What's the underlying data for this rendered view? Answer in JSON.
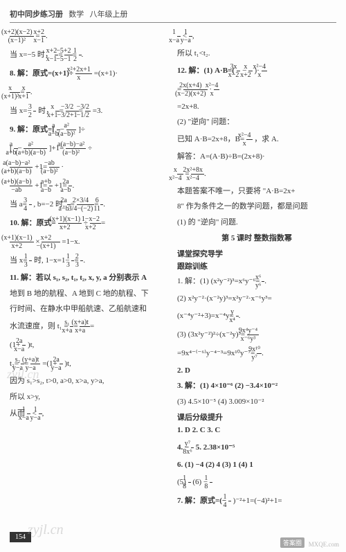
{
  "header": {
    "series": "初中同步练习册",
    "subject": "数学",
    "grade": "八年级上册"
  },
  "pageNumber": "154",
  "watermarks": {
    "w1": "zyjl.cn",
    "w2": "zyjl.cn",
    "w3": "MXQE.com",
    "badge": "答案圈"
  },
  "left": {
    "l1a": "(x+2)(x−2)",
    "l1b": "(x−1)²",
    "l1c": "x+2",
    "l1d": "x−1",
    "l2": "当 x=−5 时，",
    "l2a": "x+2",
    "l2b": "x−1",
    "l2c": "−5+2",
    "l2d": "−5−1",
    "l2e": "1",
    "l2f": "2",
    "q8": "8. 解：原式=(x+1)÷",
    "q8a": "x²+2x+1",
    "q8b": "x",
    "q8c": "=(x+1)·",
    "q8d": "x",
    "q8e": "(x+1)²",
    "q8f": "x",
    "q8g": "x+1",
    "q8h": "当 x=−",
    "q8i": "3",
    "q8j": "2",
    "q8k": " 时，",
    "q8l": "x",
    "q8m": "x+1",
    "q8n": "−3/2",
    "q8o": "−3/2+1",
    "q8p": "−3/2",
    "q8q": "−1/2",
    "q8r": "=3.",
    "q9": "9. 解：原式=[",
    "q9a": "a",
    "q9b": "a−b",
    "q9c": "a²",
    "q9d": "(a−b)²",
    "q9e": "]÷",
    "q9f": "[",
    "q9g": "a",
    "q9h": "a+b",
    "q9i": "a²",
    "q9j": "(a+b)(a−b)",
    "q9k": "]+1=",
    "q9l": "a(a−b)−a²",
    "q9m": "(a−b)²",
    "q9n": "÷",
    "q9o": "a(a−b)−a²",
    "q9p": "(a+b)(a−b)",
    "q9q": "+1=",
    "q9r": "−ab",
    "q9s": "(a−b)²",
    "q9t": "·",
    "q9u": "(a+b)(a−b)",
    "q9v": "−ab",
    "q9w": "+1=",
    "q9x": "a+b",
    "q9y": "a−b",
    "q9z": "+1=",
    "q9aa": "2a",
    "q9ab": "a−b",
    "q9ac": "当 a=",
    "q9ad": "3",
    "q9ae": "4",
    "q9af": ", b=−2 时,",
    "q9ag": "2a",
    "q9ah": "a−b",
    "q9ai": "2×3/4",
    "q9aj": "3/4−(−2)",
    "q9ak": "6",
    "q9al": "11",
    "q10": "10. 解：原式=",
    "q10a": "(x+1)(x−1)",
    "q10b": "x+2",
    "q10c": "÷",
    "q10d": "1−x−2",
    "q10e": "x+2",
    "q10f": "(x+1)(x−1)",
    "q10g": "x+2",
    "q10h": "×",
    "q10i": "x+2",
    "q10j": "−(x+1)",
    "q10k": "=1−x.",
    "q10l": "当 x=",
    "q10m": "1",
    "q10n": "3",
    "q10o": "时, 1−x=1−",
    "q10p": "1",
    "q10q": "3",
    "q10r": "2",
    "q10s": "3",
    "q11": "11. 解：若以 s₁, s₂, t₁, t₂, x, y, a 分别表示 A",
    "q11a": "地到 B 地的航程、A 地到 C 地的航程、下",
    "q11b": "行时间、在静水中甲船航速、乙船航速和",
    "q11c": "水流速度，则 t₁ =",
    "q11d": "s₁",
    "q11e": "x+a",
    "q11f": "(x+a)t",
    "q11g": "x+a",
    "q11h": "(1+",
    "q11i": "2a",
    "q11j": "x−a",
    "q11k": ")t,",
    "q11l": "t₂=",
    "q11m": "s₂",
    "q11n": "y−a",
    "q11o": "(y+a)t",
    "q11p": "y−a",
    "q11q": "=(1+",
    "q11r": "2a",
    "q11s": "y−a",
    "q11t": ")t,",
    "q11u": "因为 s₁>s₂, t>0, a>0, x>a, y>a,",
    "q11v": "所以 x>y,",
    "q11w": "从而",
    "q11x": "1",
    "q11y": "x−a",
    "q11z": "<",
    "q11za": "1",
    "q11zb": "y−a"
  },
  "right": {
    "r0a": "1",
    "r0b": "x−a",
    "r0c": "<",
    "r0d": "1",
    "r0e": "y−a",
    "r1": "所以 t₁<t₂.",
    "q12": "12. 解：(1) A·B=(",
    "q12a": "3x",
    "q12b": "x−2",
    "q12c": "−",
    "q12d": "x",
    "q12e": "x+2",
    "q12f": ")·",
    "q12g": "x²−4",
    "q12h": "x",
    "q12i": "=",
    "q12j": "2x(x+4)",
    "q12k": "(x−2)(x+2)",
    "q12l": "·",
    "q12m": "x²−4",
    "q12n": "x",
    "q12o": "=2x+8.",
    "q12p": "(2) \"逆向\" 问题：",
    "q12q": "已知 A·B=2x+8，B=",
    "q12r": "x²−4",
    "q12s": "x",
    "q12t": "，求 A.",
    "q12u": "解答：A=(A·B)÷B=(2x+8)·",
    "q12v": "x",
    "q12w": "x²−4",
    "q12x": "=",
    "q12y": "2x²+8x",
    "q12z": "x²−4",
    "q12aa": "本题答案不唯一，只要将 \"A·B=2x+",
    "q12ab": "8\" 作为条件之一的数学问题，都是问题",
    "q12ac": "(1) 的 \"逆向\" 问题.",
    "section5": "第 5 课时  整数指数幂",
    "sub1": "课堂探究导学",
    "sub2": "跟踪训练",
    "t1": "1. 解：(1) (x²y⁻²)³=x⁶y⁻⁶=",
    "t1a": "x⁶",
    "t1b": "y⁶",
    "t1c": "(2) x²y⁻²·(x⁻²y)³=x²y⁻²·x⁻⁶y³=",
    "t1d": "x⁻⁴y=",
    "t1d2": "(x⁻⁴y⁻²+3)=x⁻⁴y=",
    "t1e": "y",
    "t1f": "x⁴",
    "t1g": "(3) (3x²y⁻²)²÷(x⁻²y)³=",
    "t1h": "9x⁴y⁻⁴",
    "t1i": "x⁻⁶y³",
    "t1j": "=9x⁴⁻⁽⁻⁶⁾y⁻⁴⁻³=9x¹⁰y⁻⁷=",
    "t1k": "9x¹⁰",
    "t1l": "y⁷",
    "t2": "2. D",
    "t3": "3. 解：(1) 4×10⁻⁶  (2) −3.4×10⁻²",
    "t3a": "(3) 4.5×10⁻⁵  (4) 3.009×10⁻²",
    "sub3": "课后分级提升",
    "t4": "1. D  2. C  3. C",
    "t5": "4. −",
    "t5a": "y⁷",
    "t5b": "8x⁶",
    "t5c": "  5. 2.38×10⁻⁵",
    "t6": "6. (1) −4  (2) 4  (3) 1  (4) 1",
    "t6a": "(5) ",
    "t6b": "1",
    "t6c": "8",
    "t6d": "  (6) −",
    "t6e": "1",
    "t6f": "8",
    "t7": "7. 解：原式=(−",
    "t7a": "1",
    "t7b": "4",
    "t7c": ")⁻²+1=(−4)²+1="
  }
}
